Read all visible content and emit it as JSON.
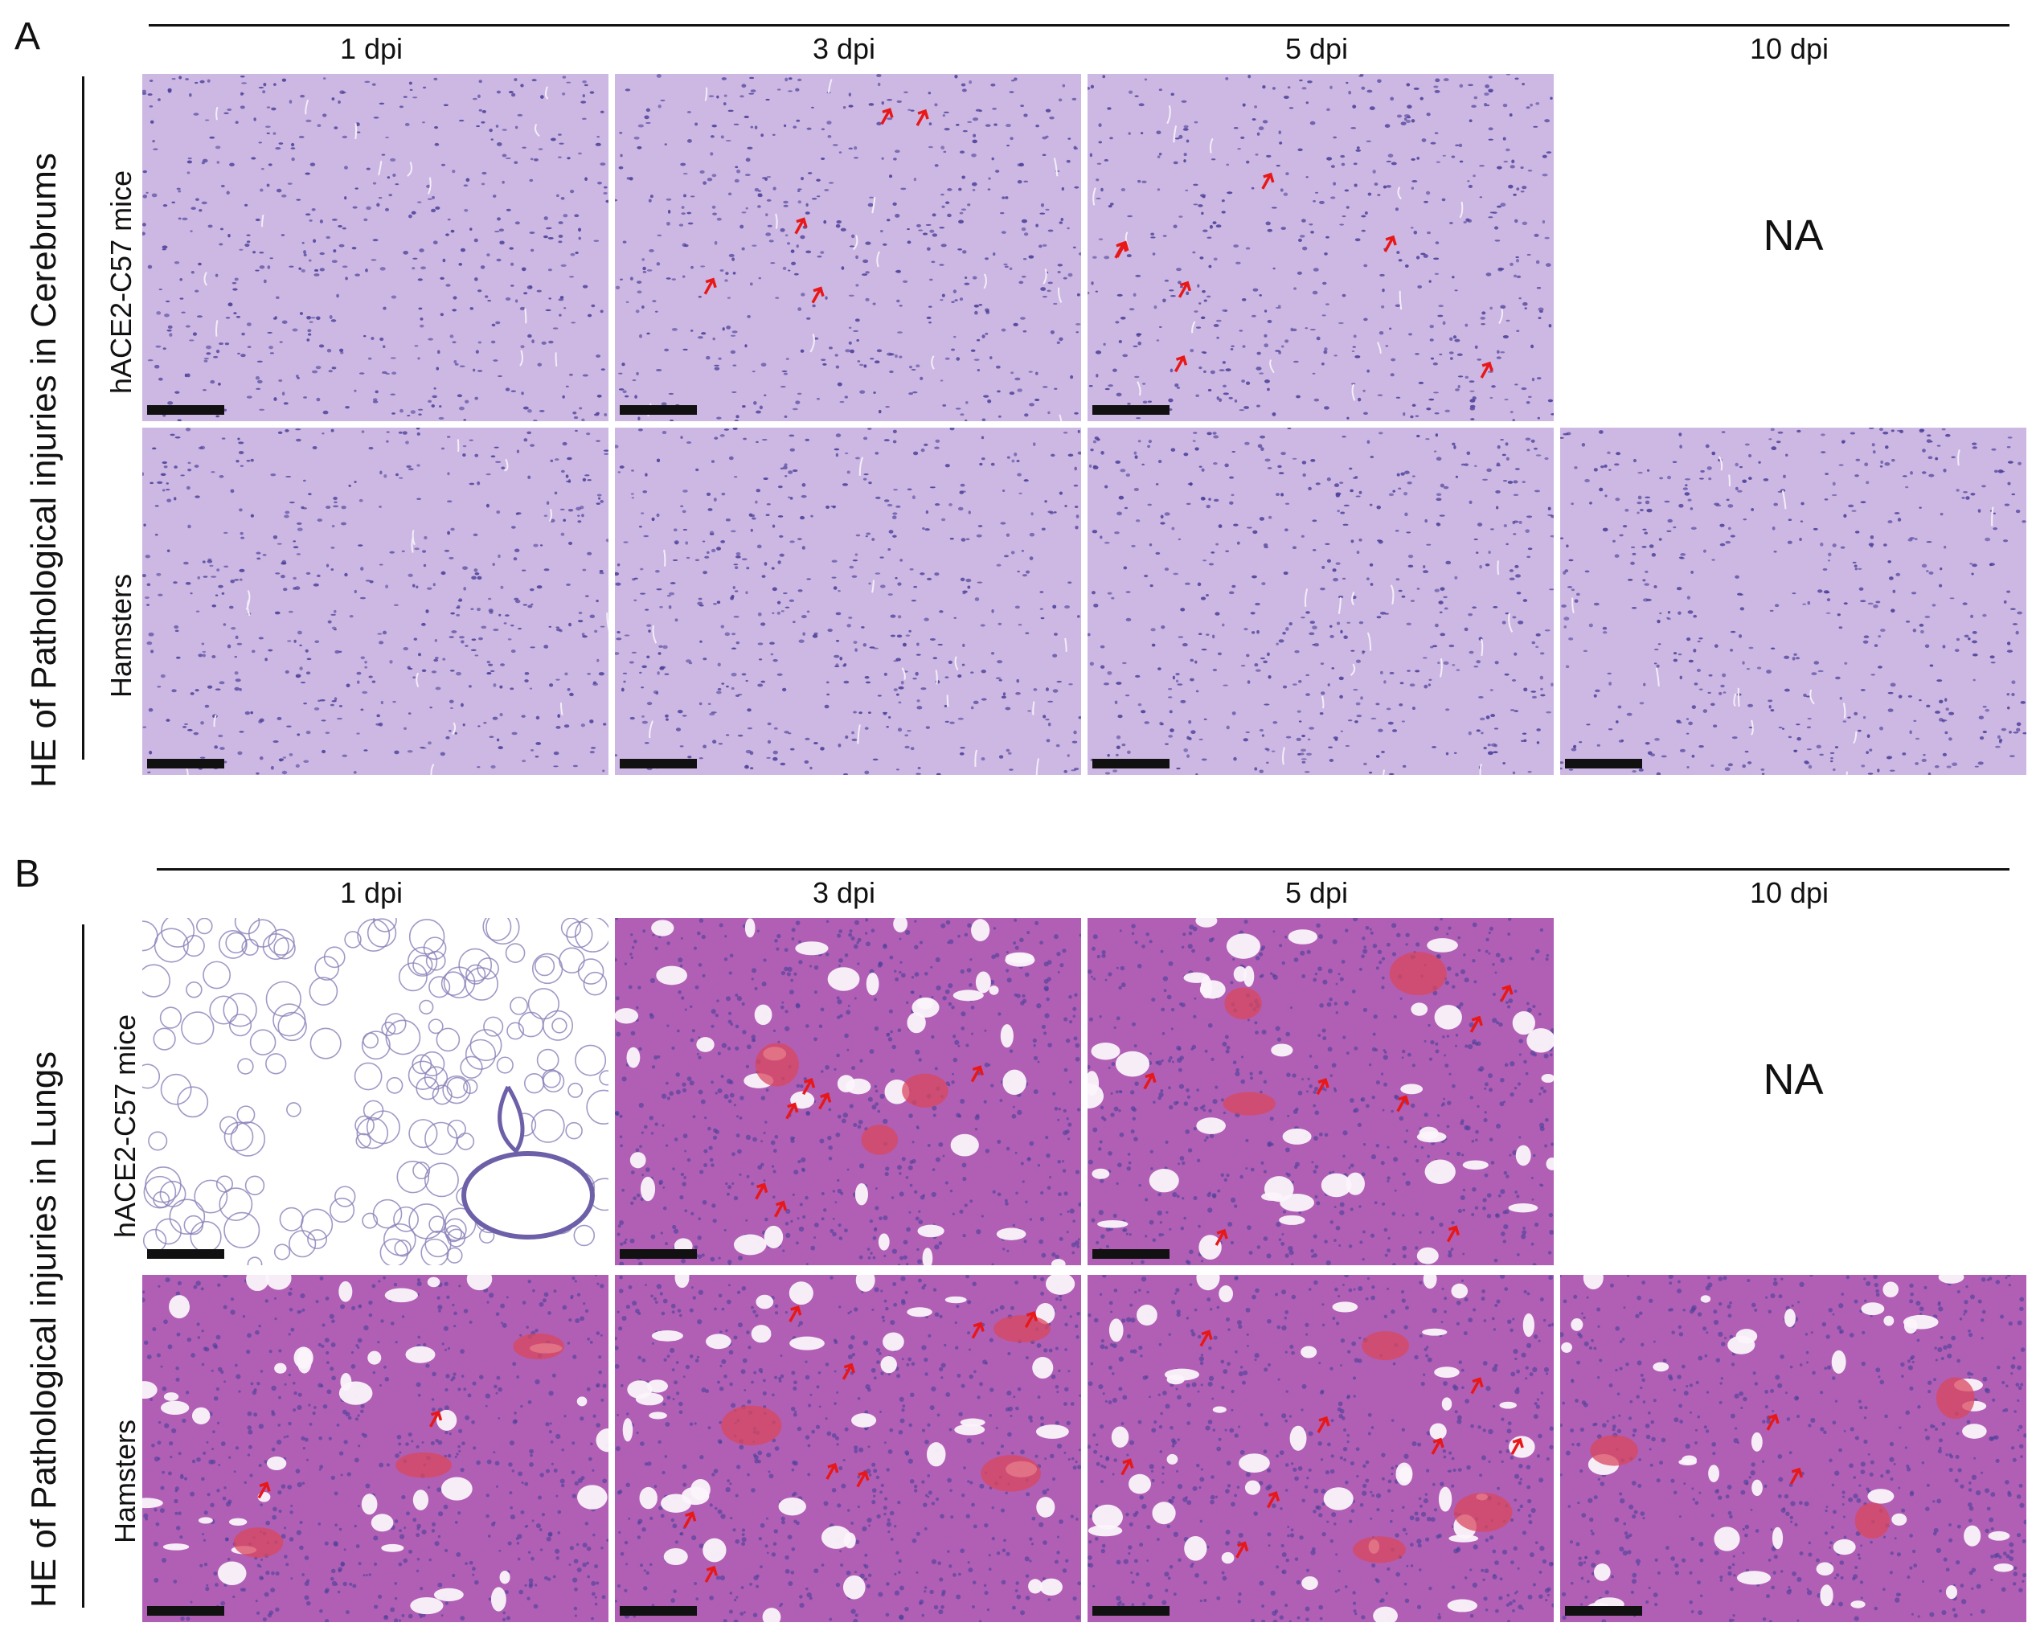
{
  "panel_a": {
    "letter": "A",
    "title": "HE of  Pathological injuries in Cerebrums",
    "columns": [
      "1 dpi",
      "3 dpi",
      "5 dpi",
      "10 dpi"
    ],
    "rows": [
      "hACE2-C57 mice",
      "Hamsters"
    ],
    "na_label": "NA"
  },
  "panel_b": {
    "letter": "B",
    "title": "HE of  Pathological injuries in Lungs",
    "columns": [
      "1 dpi",
      "3 dpi",
      "5 dpi",
      "10 dpi"
    ],
    "rows": [
      "hACE2-C57 mice",
      "Hamsters"
    ],
    "na_label": "NA"
  },
  "colors": {
    "brain_tissue": "#cdb8e3",
    "lung_pale": "#f1eef6",
    "lung_dense": "#b05fb5",
    "nuclei": "#4a3f99",
    "arrow": "#e81818"
  },
  "image_tiles": [
    {
      "panel": "A",
      "row": "hACE2-C57 mice",
      "column": "1 dpi",
      "stain": "brain",
      "arrows": 0
    },
    {
      "panel": "A",
      "row": "hACE2-C57 mice",
      "column": "3 dpi",
      "stain": "brain",
      "arrows": 5
    },
    {
      "panel": "A",
      "row": "hACE2-C57 mice",
      "column": "5 dpi",
      "stain": "brain",
      "arrows": 7
    },
    {
      "panel": "A",
      "row": "Hamsters",
      "column": "1 dpi",
      "stain": "brain",
      "arrows": 0
    },
    {
      "panel": "A",
      "row": "Hamsters",
      "column": "3 dpi",
      "stain": "brain",
      "arrows": 0
    },
    {
      "panel": "A",
      "row": "Hamsters",
      "column": "5 dpi",
      "stain": "brain",
      "arrows": 0
    },
    {
      "panel": "A",
      "row": "Hamsters",
      "column": "10 dpi",
      "stain": "brain",
      "arrows": 0
    },
    {
      "panel": "B",
      "row": "hACE2-C57 mice",
      "column": "1 dpi",
      "stain": "lung-normal",
      "arrows": 0
    },
    {
      "panel": "B",
      "row": "hACE2-C57 mice",
      "column": "3 dpi",
      "stain": "lung-injured",
      "arrows": 6
    },
    {
      "panel": "B",
      "row": "hACE2-C57 mice",
      "column": "5 dpi",
      "stain": "lung-injured",
      "arrows": 7
    },
    {
      "panel": "B",
      "row": "Hamsters",
      "column": "1 dpi",
      "stain": "lung-injured",
      "arrows": 2
    },
    {
      "panel": "B",
      "row": "Hamsters",
      "column": "3 dpi",
      "stain": "lung-injured",
      "arrows": 8
    },
    {
      "panel": "B",
      "row": "Hamsters",
      "column": "5 dpi",
      "stain": "lung-injured",
      "arrows": 8
    },
    {
      "panel": "B",
      "row": "Hamsters",
      "column": "10 dpi",
      "stain": "lung-injured",
      "arrows": 2
    }
  ]
}
